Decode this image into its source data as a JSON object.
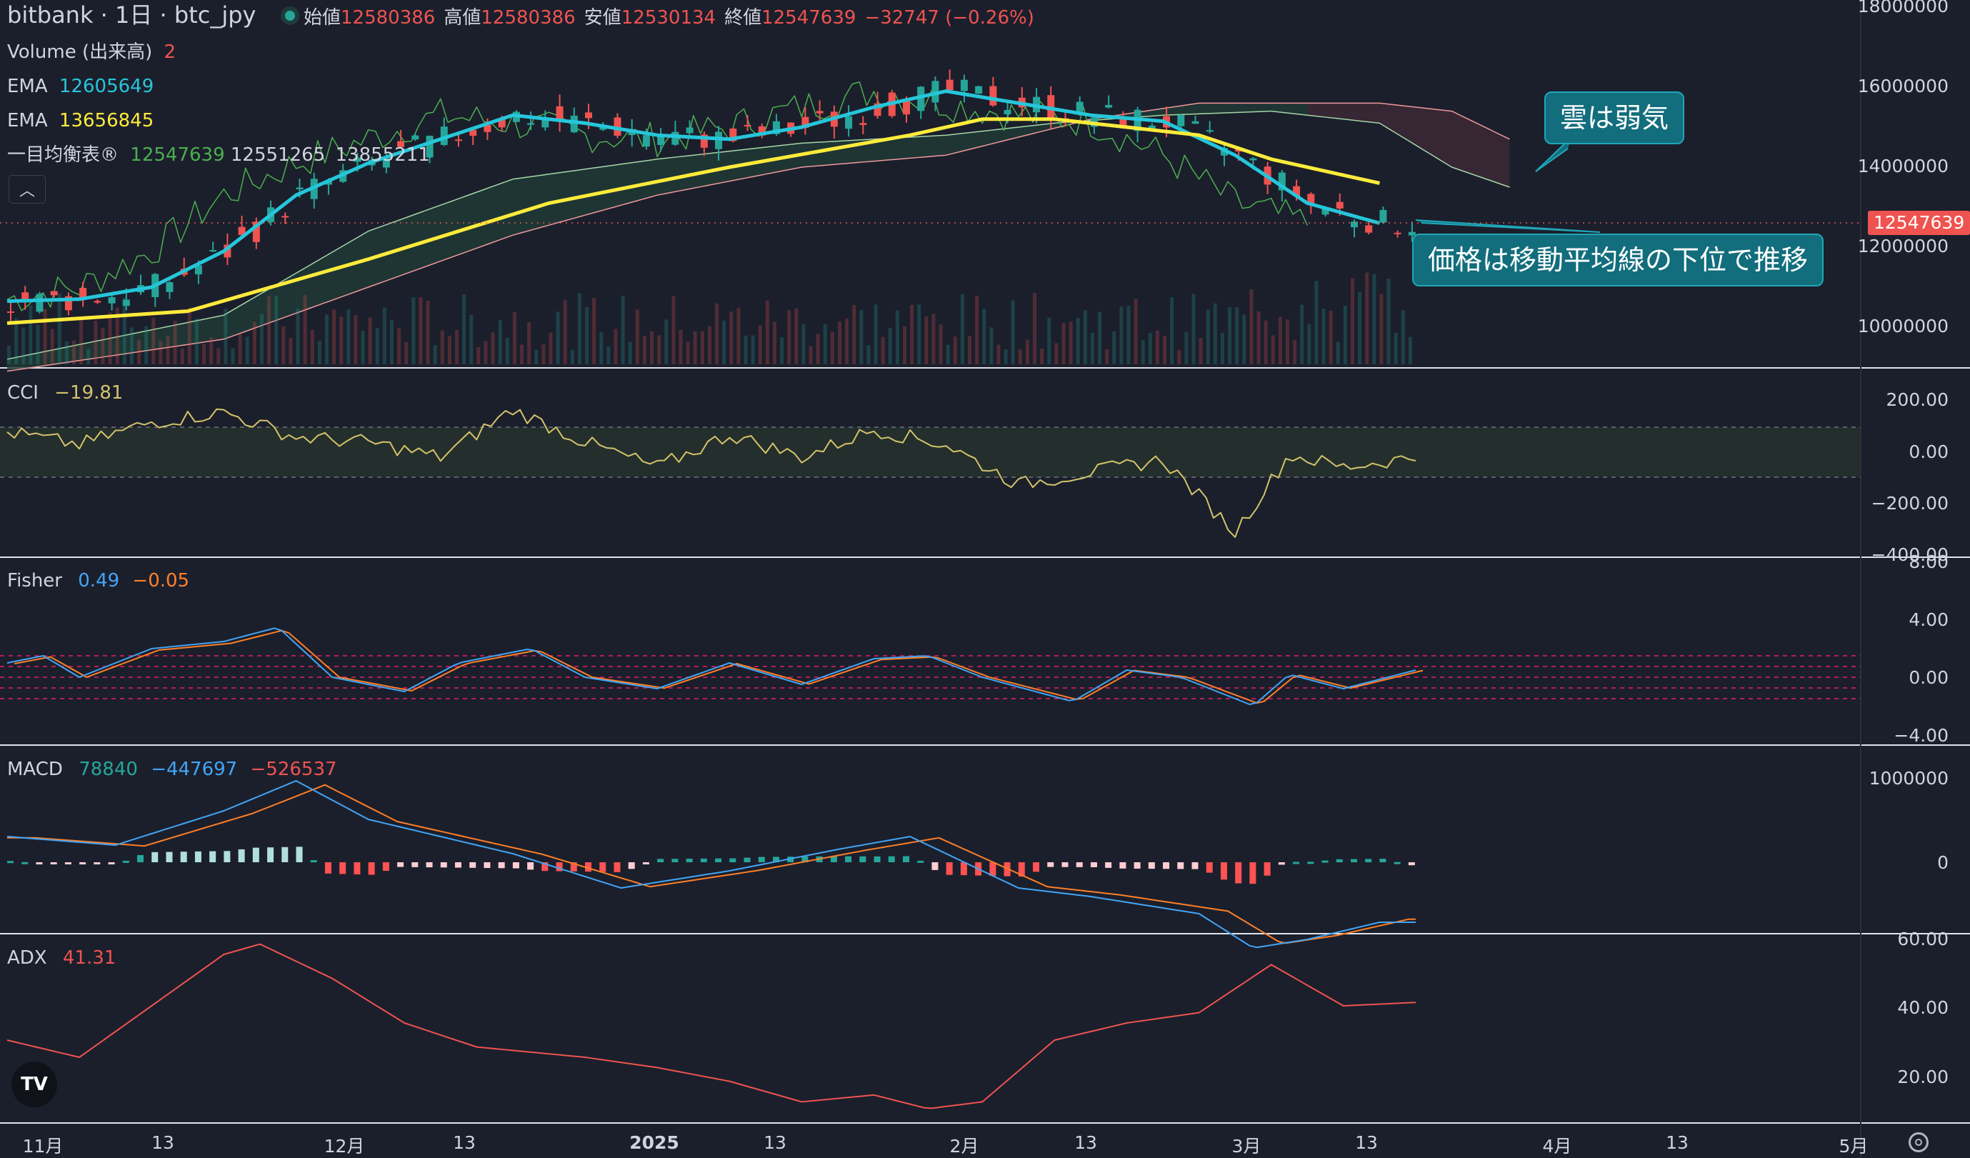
{
  "header": {
    "title": "bitbank · 1日 · btc_jpy",
    "open_label": "始値",
    "open_value": "12580386",
    "high_label": "高値",
    "high_value": "12580386",
    "low_label": "安値",
    "low_value": "12530134",
    "close_label": "終値",
    "close_value": "12547639",
    "change": "−32747 (−0.26%)"
  },
  "legend": {
    "volume_label": "Volume (出来高)",
    "volume_value": "2",
    "ema1_label": "EMA",
    "ema1_value": "12605649",
    "ema2_label": "EMA",
    "ema2_value": "13656845",
    "ichimoku_label": "一目均衡表®",
    "ichimoku_v1": "12547639",
    "ichimoku_v2": "12551265",
    "ichimoku_v3": "13855211"
  },
  "panels": {
    "cci": {
      "label": "CCI",
      "value": "−19.81"
    },
    "fisher": {
      "label": "Fisher",
      "v1": "0.49",
      "v2": "−0.05"
    },
    "macd": {
      "label": "MACD",
      "v1": "78840",
      "v2": "−447697",
      "v3": "−526537"
    },
    "adx": {
      "label": "ADX",
      "value": "41.31"
    }
  },
  "price_axis": [
    "18000000",
    "16000000",
    "14000000",
    "12000000",
    "10000000"
  ],
  "cci_axis": [
    "200.00",
    "0.00",
    "−200.00",
    "−400.00"
  ],
  "fisher_axis": [
    "8.00",
    "4.00",
    "0.00",
    "−4.00"
  ],
  "macd_axis": [
    "1000000",
    "0"
  ],
  "adx_axis": [
    "60.00",
    "40.00",
    "20.00"
  ],
  "x_axis": [
    "11月",
    "13",
    "12月",
    "13",
    "2025",
    "13",
    "2月",
    "13",
    "3月",
    "13",
    "4月",
    "13",
    "5月"
  ],
  "price_tag": "12547639",
  "annotations": {
    "cloud_bearish": "雲は弱気",
    "below_ma": "価格は移動平均線の下位で推移"
  },
  "colors": {
    "background": "#1b1f2c",
    "up": "#26a69a",
    "down": "#ef5350",
    "ema_fast": "#26c6da",
    "ema_slow": "#ffeb3b",
    "cci": "#d4c36a",
    "fisher_fast": "#42a5f5",
    "fisher_slow": "#ff7f27",
    "adx": "#ef5350",
    "callout": "#126d7c"
  },
  "chart_data": {
    "type": "candlestick",
    "series": [
      {
        "name": "EMA",
        "points": [
          [
            0,
            10650000
          ],
          [
            20,
            10700000
          ],
          [
            40,
            11000000
          ],
          [
            60,
            11900000
          ],
          [
            80,
            13300000
          ],
          [
            100,
            14100000
          ],
          [
            120,
            14700000
          ],
          [
            140,
            15300000
          ],
          [
            160,
            15100000
          ],
          [
            180,
            14800000
          ],
          [
            200,
            14700000
          ],
          [
            220,
            15000000
          ],
          [
            240,
            15500000
          ],
          [
            260,
            15900000
          ],
          [
            280,
            15600000
          ],
          [
            300,
            15300000
          ],
          [
            320,
            15150000
          ],
          [
            340,
            14300000
          ],
          [
            360,
            13100000
          ],
          [
            380,
            12600000
          ]
        ]
      },
      {
        "name": "EMA",
        "points": [
          [
            0,
            10100000
          ],
          [
            50,
            10400000
          ],
          [
            100,
            11700000
          ],
          [
            150,
            13100000
          ],
          [
            200,
            14000000
          ],
          [
            250,
            14800000
          ],
          [
            270,
            15200000
          ],
          [
            290,
            15200000
          ],
          [
            310,
            15000000
          ],
          [
            330,
            14800000
          ],
          [
            350,
            14200000
          ],
          [
            380,
            13600000
          ]
        ]
      }
    ]
  }
}
